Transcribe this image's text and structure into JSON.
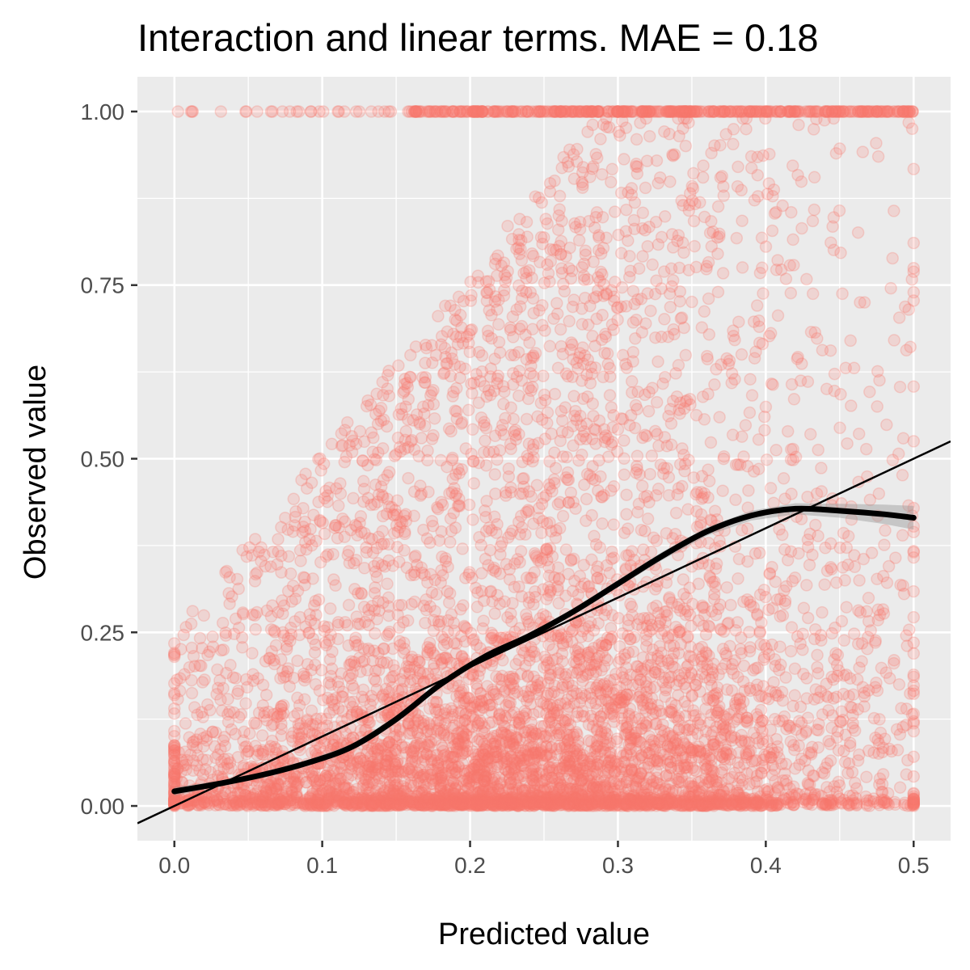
{
  "chart_data": {
    "type": "scatter",
    "title": "Interaction and linear terms. MAE = 0.18",
    "xlabel": "Predicted value",
    "ylabel": "Observed value",
    "xlim": [
      -0.025,
      0.525
    ],
    "ylim": [
      -0.05,
      1.05
    ],
    "x_ticks": [
      0.0,
      0.1,
      0.2,
      0.3,
      0.4,
      0.5
    ],
    "x_tick_labels": [
      "0.0",
      "0.1",
      "0.2",
      "0.3",
      "0.4",
      "0.5"
    ],
    "y_ticks": [
      0.0,
      0.25,
      0.5,
      0.75,
      1.0
    ],
    "y_tick_labels": [
      "0.00",
      "0.25",
      "0.50",
      "0.75",
      "1.00"
    ],
    "grid": true,
    "legend": "none",
    "colors": {
      "points": "#F8766D",
      "smooth_line": "#000000",
      "reference_line": "#000000",
      "confidence_band": "#999999",
      "panel_background": "#EBEBEB",
      "grid": "#FFFFFF"
    },
    "point_alpha": 0.2,
    "series": [
      {
        "kind": "loess_smooth",
        "x": [
          0.0,
          0.03,
          0.06,
          0.09,
          0.12,
          0.15,
          0.18,
          0.21,
          0.24,
          0.27,
          0.3,
          0.33,
          0.36,
          0.39,
          0.42,
          0.45,
          0.48,
          0.5
        ],
        "y": [
          0.021,
          0.032,
          0.045,
          0.062,
          0.085,
          0.125,
          0.175,
          0.215,
          0.245,
          0.28,
          0.32,
          0.36,
          0.395,
          0.418,
          0.428,
          0.425,
          0.42,
          0.415
        ],
        "band_halfwidth": [
          0.006,
          0.004,
          0.004,
          0.004,
          0.004,
          0.004,
          0.004,
          0.004,
          0.004,
          0.004,
          0.005,
          0.006,
          0.006,
          0.007,
          0.008,
          0.01,
          0.014,
          0.017
        ]
      },
      {
        "kind": "identity_line",
        "slope": 1.0,
        "intercept": 0.0
      },
      {
        "kind": "scatter_points",
        "description_density": [
          {
            "x_range": [
              0.0,
              0.5
            ],
            "y_value": 0.0,
            "note": "dense band of zero observations"
          },
          {
            "x_range": [
              0.16,
              0.5
            ],
            "y_value": 1.0,
            "note": "dense band of one observations"
          }
        ]
      }
    ]
  }
}
